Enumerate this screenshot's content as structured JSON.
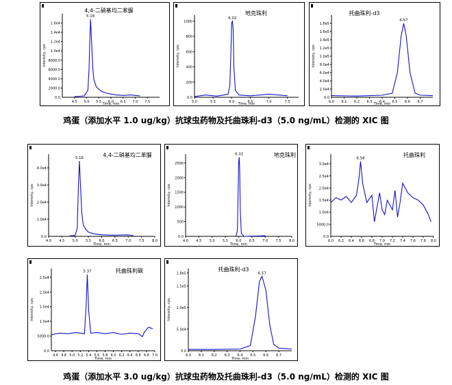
{
  "captions": {
    "row1": "鸡蛋（添加水平 1.0 ug/kg）抗球虫药物及托曲珠利-d3（5.0 ng/mL）检测的 XIC 图",
    "row3": "鸡蛋（添加水平 3.0 ug/kg）抗球虫药物及托曲珠利-d3（5.0 ng/mL）检测的 XIC 图"
  },
  "chart_data": [
    {
      "type": "line",
      "title": "4,4-二硝基均二苯脲",
      "xlabel": "Time, min",
      "ylabel": "Intensity, cps",
      "xlim": [
        4.0,
        8.0
      ],
      "ylim": [
        0,
        18000.0
      ],
      "xticks": [
        "4.5",
        "5.0",
        "5.5",
        "6.0",
        "6.5",
        "7.0",
        "7.5"
      ],
      "yticks": [
        "2000.0",
        "4000.0",
        "6000.0",
        "8000.0",
        "1.0e4",
        "1.2e4",
        "1.4e4",
        "1.6e4"
      ],
      "peak_label": "5.16",
      "x": [
        4.5,
        4.9,
        5.05,
        5.1,
        5.13,
        5.16,
        5.2,
        5.25,
        5.3,
        5.4,
        5.6,
        5.8,
        6.0,
        6.2,
        6.5,
        6.8,
        7.0,
        7.2
      ],
      "y": [
        150,
        300,
        1500,
        6000,
        12000,
        16800,
        12500,
        6500,
        3800,
        2200,
        1300,
        900,
        700,
        500,
        400,
        500,
        400,
        300
      ]
    },
    {
      "type": "line",
      "title": "地克珠利",
      "xlabel": "Time, min",
      "ylabel": "Intensity, cps",
      "xlim": [
        5.0,
        7.8
      ],
      "ylim": [
        0,
        1080
      ],
      "xticks": [
        "5.0",
        "5.5",
        "6.0",
        "6.5",
        "7.0",
        "7.5"
      ],
      "yticks": [
        "200",
        "400",
        "600",
        "800",
        "1000"
      ],
      "peak_label": "6.02",
      "x": [
        5.0,
        5.3,
        5.6,
        5.9,
        5.95,
        5.98,
        6.0,
        6.02,
        6.04,
        6.06,
        6.1,
        6.2,
        6.5,
        7.0,
        7.5
      ],
      "y": [
        10,
        30,
        15,
        40,
        150,
        600,
        980,
        1000,
        900,
        400,
        90,
        30,
        20,
        40,
        20
      ]
    },
    {
      "type": "line",
      "title": "托曲珠利-d3",
      "xlabel": "Time, min",
      "ylabel": "Intensity, cps",
      "xlim": [
        6.0,
        6.8
      ],
      "ylim": [
        0,
        200000.0
      ],
      "xticks": [
        "6.0",
        "6.1",
        "6.2",
        "6.3",
        "6.4",
        "6.5",
        "6.6",
        "6.7"
      ],
      "yticks": [
        "2.0e4",
        "4.0e4",
        "6.0e4",
        "8.0e4",
        "1.0e5",
        "1.2e5",
        "1.4e5",
        "1.6e5",
        "1.8e5"
      ],
      "peak_label": "6.57",
      "x": [
        6.0,
        6.2,
        6.4,
        6.48,
        6.52,
        6.55,
        6.57,
        6.59,
        6.62,
        6.66,
        6.7,
        6.8
      ],
      "y": [
        4000,
        3000,
        5000,
        10000,
        60000,
        150000,
        180000,
        150000,
        60000,
        10000,
        5000,
        4000
      ]
    },
    {
      "type": "line",
      "title": "4,4-二硝基均二苯脲",
      "xlabel": "Time, min",
      "ylabel": "Intensity, cps",
      "xlim": [
        4.0,
        8.0
      ],
      "ylim": [
        0,
        48000.0
      ],
      "xticks": [
        "4.0",
        "4.5",
        "5.0",
        "5.5",
        "6.0",
        "6.5",
        "7.0",
        "7.5",
        "8.0"
      ],
      "yticks": [
        "1.0e4",
        "2.0e4",
        "3.0e4",
        "4.0e4"
      ],
      "peak_label": "5.16",
      "x": [
        4.8,
        5.0,
        5.08,
        5.12,
        5.16,
        5.2,
        5.25,
        5.3,
        5.4,
        5.5,
        5.7,
        6.0,
        6.5,
        7.0,
        7.2
      ],
      "y": [
        300,
        600,
        5000,
        28000,
        44000,
        30000,
        14000,
        7000,
        4000,
        2500,
        1500,
        900,
        700,
        900,
        400
      ]
    },
    {
      "type": "line",
      "title": "地克珠利",
      "xlabel": "Time, min",
      "ylabel": "Intensity, cps",
      "xlim": [
        4.0,
        8.0
      ],
      "ylim": [
        0,
        2800
      ],
      "xticks": [
        "4.0",
        "4.5",
        "5.0",
        "5.5",
        "6.0",
        "6.5",
        "7.0",
        "7.5",
        "8.0"
      ],
      "yticks": [
        "500",
        "1000",
        "1500",
        "2000",
        "2500"
      ],
      "peak_label": "6.02",
      "x": [
        5.9,
        5.95,
        5.98,
        6.0,
        6.02,
        6.04,
        6.06,
        6.1,
        6.2,
        7.0
      ],
      "y": [
        0,
        200,
        1500,
        2500,
        2700,
        2300,
        900,
        100,
        0,
        20
      ]
    },
    {
      "type": "line",
      "title": "托曲珠利",
      "xlabel": "Time, min",
      "ylabel": "Intensity, cps",
      "xlim": [
        6.0,
        8.0
      ],
      "ylim": [
        0,
        34000.0
      ],
      "xticks": [
        "6.0",
        "6.2",
        "6.4",
        "6.6",
        "6.8",
        "7.0",
        "7.2",
        "7.4",
        "7.6",
        "7.8",
        "8.0"
      ],
      "yticks": [
        "5000.0",
        "1.0e4",
        "1.5e4",
        "2.0e4",
        "2.5e4",
        "3.0e4"
      ],
      "peak_label": "6.58",
      "x": [
        6.0,
        6.1,
        6.2,
        6.3,
        6.4,
        6.5,
        6.55,
        6.58,
        6.62,
        6.7,
        6.8,
        6.85,
        6.9,
        6.95,
        7.0,
        7.05,
        7.1,
        7.2,
        7.25,
        7.3,
        7.35,
        7.4,
        7.5,
        7.6,
        7.7,
        7.8,
        7.9,
        7.95
      ],
      "y": [
        14000,
        16000,
        15000,
        16500,
        14000,
        17000,
        24000,
        31000,
        22000,
        14000,
        17000,
        6000,
        12000,
        18000,
        11000,
        9000,
        15000,
        11000,
        19000,
        8000,
        14000,
        22000,
        18000,
        16000,
        15000,
        13000,
        9000,
        6000
      ]
    },
    {
      "type": "line",
      "title": "托曲珠利砜",
      "xlabel": "Time, min",
      "ylabel": "Intensity, cps",
      "xlim": [
        4.5,
        7.0
      ],
      "ylim": [
        0,
        28000.0
      ],
      "xticks": [
        "4.6",
        "4.8",
        "5.0",
        "5.2",
        "5.4",
        "5.6",
        "5.8",
        "6.0",
        "6.2",
        "6.4",
        "6.6",
        "6.8",
        "7.0"
      ],
      "yticks": [
        "5000.0",
        "1.0e4",
        "1.5e4",
        "2.0e4",
        "2.5e4"
      ],
      "peak_label": "5.37",
      "x": [
        4.5,
        4.7,
        4.9,
        5.1,
        5.3,
        5.34,
        5.37,
        5.4,
        5.45,
        5.6,
        5.8,
        6.0,
        6.2,
        6.4,
        6.6,
        6.7,
        6.75,
        6.85,
        6.95
      ],
      "y": [
        5500,
        6000,
        5800,
        6200,
        5800,
        15000,
        26000,
        14000,
        6000,
        6200,
        5800,
        6200,
        5600,
        6000,
        5800,
        4800,
        6400,
        8000,
        7500
      ]
    },
    {
      "type": "line",
      "title": "托曲珠利-d3",
      "xlabel": "Time, min",
      "ylabel": "Intensity, cps",
      "xlim": [
        6.0,
        6.8
      ],
      "ylim": [
        0,
        190000.0
      ],
      "xticks": [
        "6.0",
        "6.1",
        "6.2",
        "6.3",
        "6.4",
        "6.5",
        "6.6",
        "6.7"
      ],
      "yticks": [
        "5.0e4",
        "1.0e5",
        "1.5e5",
        "1.8e5"
      ],
      "peak_label": "6.57",
      "x": [
        6.0,
        6.2,
        6.4,
        6.48,
        6.52,
        6.55,
        6.57,
        6.6,
        6.63,
        6.66,
        6.7,
        6.8
      ],
      "y": [
        3000,
        3000,
        4000,
        12000,
        80000,
        160000,
        172000,
        140000,
        60000,
        15000,
        6000,
        4000
      ]
    }
  ]
}
